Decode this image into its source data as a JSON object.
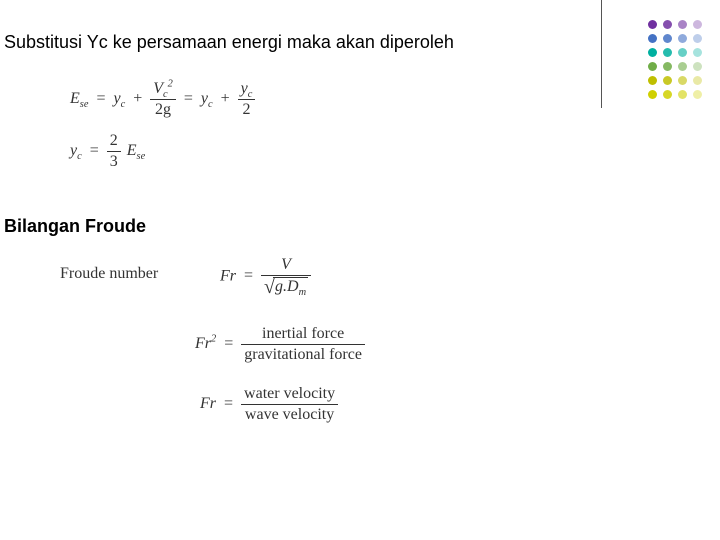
{
  "headings": {
    "h1": "Substitusi Yc ke persamaan energi maka akan diperoleh",
    "h2": "Bilangan Froude"
  },
  "equations": {
    "eq1": {
      "lhs_base": "E",
      "lhs_sub": "se",
      "eq": "=",
      "t1_base": "y",
      "t1_sub": "c",
      "plus1": "+",
      "f1_num_base": "V",
      "f1_num_sub": "c",
      "f1_num_sup": "2",
      "f1_den": "2g",
      "eq2": "=",
      "t2_base": "y",
      "t2_sub": "c",
      "plus2": "+",
      "f2_num_base": "y",
      "f2_num_sub": "c",
      "f2_den": "2"
    },
    "eq2": {
      "lhs_base": "y",
      "lhs_sub": "c",
      "eq": "=",
      "f_num": "2",
      "f_den": "3",
      "rhs_base": "E",
      "rhs_sub": "se"
    },
    "fr_label": "Froude number",
    "fr1": {
      "lhs": "Fr",
      "eq": "=",
      "num": "V",
      "den_sqrt_inner_1": "g.D",
      "den_sqrt_inner_sub": "m"
    },
    "fr2": {
      "lhs": "Fr",
      "lhs_sup": "2",
      "eq": "=",
      "num": "inertial force",
      "den": "gravitational force"
    },
    "fr3": {
      "lhs": "Fr",
      "eq": "=",
      "num": "water velocity",
      "den": "wave velocity"
    }
  },
  "decor": {
    "colors": [
      [
        "#7030a0",
        "#7030a0",
        "#7030a0",
        "#7030a0"
      ],
      [
        "#4472c4",
        "#4472c4",
        "#4472c4",
        "#4472c4"
      ],
      [
        "#00b0a0",
        "#00b0a0",
        "#00b0a0",
        "#00b0a0"
      ],
      [
        "#70ad47",
        "#70ad47",
        "#70ad47",
        "#70ad47"
      ],
      [
        "#bfbf00",
        "#bfbf00",
        "#bfbf00",
        "#bfbf00"
      ],
      [
        "#d0d000",
        "#d0d000",
        "#d0d000",
        "#d0d000"
      ]
    ],
    "opacities": [
      1,
      0.85,
      0.6,
      0.35
    ]
  }
}
